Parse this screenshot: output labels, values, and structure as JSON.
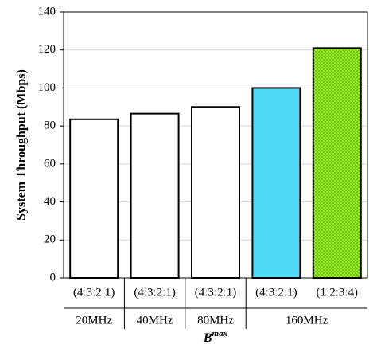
{
  "chart_data": {
    "type": "bar",
    "ylabel": "System Throughput (Mbps)",
    "xlabel": "B",
    "xlabel_superscript": "max",
    "categories": [
      "(4:3:2:1)",
      "(4:3:2:1)",
      "(4:3:2:1)",
      "(4:3:2:1)",
      "(1:2:3:4)"
    ],
    "groups": [
      "20MHz",
      "40MHz",
      "80MHz",
      "160MHz",
      null
    ],
    "values": [
      83.5,
      86.5,
      90,
      100,
      121
    ],
    "colors": [
      "#ffffff",
      "#ffffff",
      "#ffffff",
      "#4dd9f7",
      "#99ee22"
    ],
    "patterns": [
      null,
      null,
      null,
      null,
      "dots"
    ],
    "ylim": [
      0,
      140
    ],
    "yticks": [
      0,
      20,
      40,
      60,
      80,
      100,
      120,
      140
    ],
    "grid": true
  }
}
